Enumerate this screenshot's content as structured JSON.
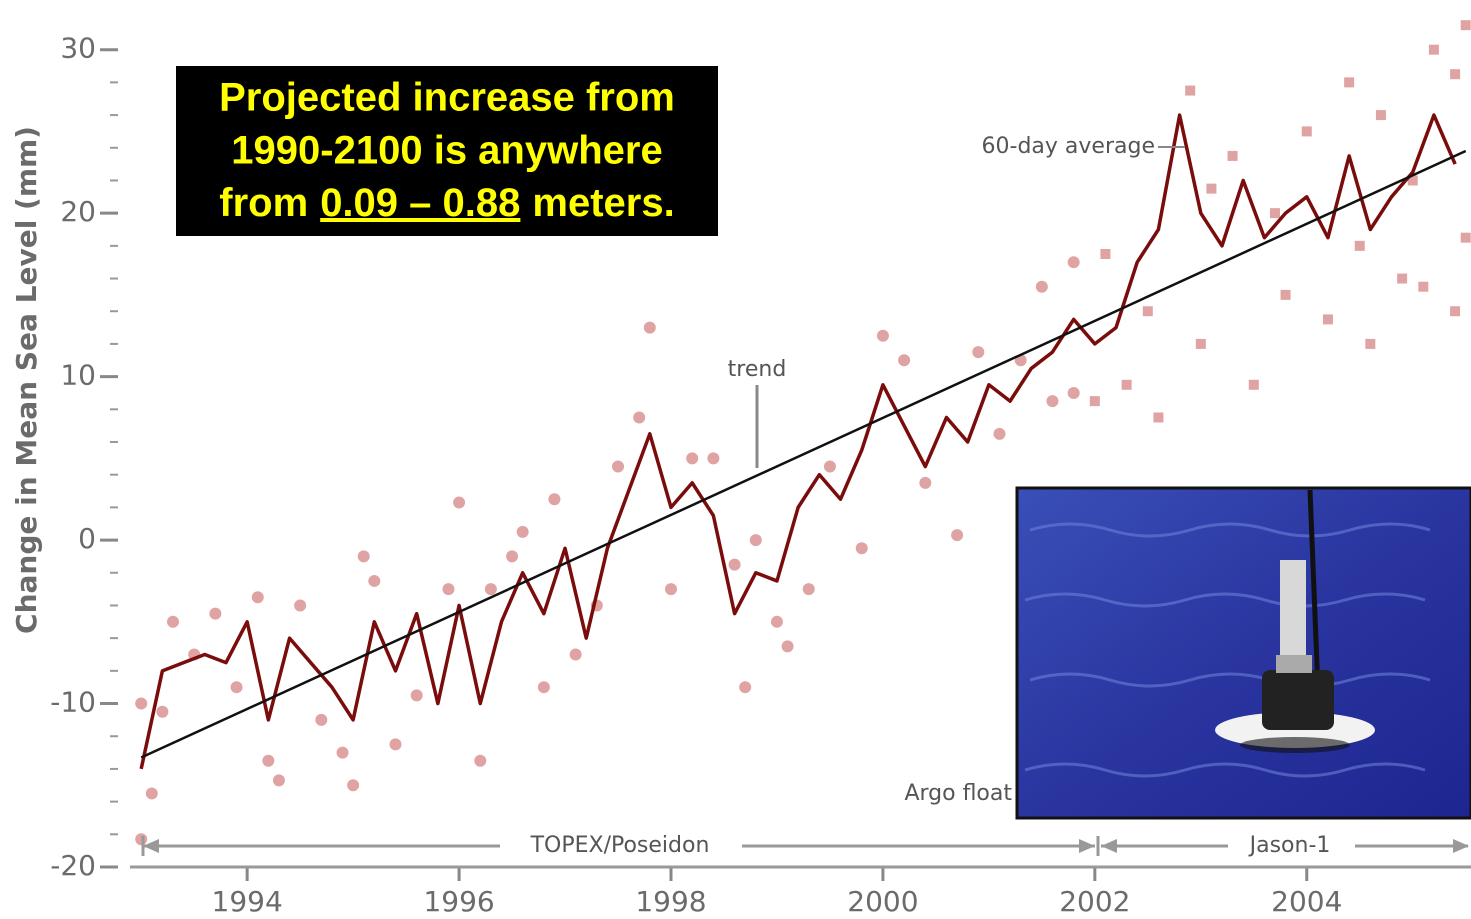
{
  "chart_data": {
    "type": "line",
    "y_label": "Change in Mean Sea Level (mm)",
    "xlim": [
      1992.8,
      2005.55
    ],
    "ylim": [
      -20,
      32
    ],
    "xticks": [
      1994,
      1996,
      1998,
      2000,
      2002,
      2004
    ],
    "yticks": [
      -20,
      -10,
      0,
      10,
      20,
      30
    ],
    "annotations": {
      "trend": "trend",
      "average": "60-day average",
      "float": "Argo float",
      "mission1": "TOPEX/Poseidon",
      "mission2": "Jason-1",
      "box": [
        "Projected increase from",
        "1990-2100 is anywhere",
        "from",
        "0.09 – 0.88",
        "meters."
      ]
    },
    "series": [
      {
        "kind": "scatter",
        "marker": "circle",
        "color": "#e0a3a3",
        "x": [
          1993.0,
          1993.0,
          1993.1,
          1993.2,
          1993.3,
          1993.5,
          1993.7,
          1993.9,
          1994.1,
          1994.2,
          1994.3,
          1994.5,
          1994.7,
          1994.9,
          1995.0,
          1995.1,
          1995.2,
          1995.4,
          1995.6,
          1995.9,
          1996.0,
          1996.2,
          1996.3,
          1996.5,
          1996.6,
          1996.8,
          1996.9,
          1997.1,
          1997.3,
          1997.5,
          1997.7,
          1997.8,
          1998.0,
          1998.2,
          1998.4,
          1998.6,
          1998.7,
          1998.8,
          1999.0,
          1999.1,
          1999.3,
          1999.5,
          1999.8,
          2000.0,
          2000.2,
          2000.4,
          2000.7,
          2000.9,
          2001.1,
          2001.3,
          2001.5,
          2001.6,
          2001.8,
          2001.8
        ],
        "values": [
          -10,
          -18.3,
          -15.5,
          -10.5,
          -5,
          -7,
          -4.5,
          -9,
          -3.5,
          -13.5,
          -14.7,
          -4,
          -11,
          -13,
          -15,
          -1,
          -2.5,
          -12.5,
          -9.5,
          -3,
          2.3,
          -13.5,
          -3,
          -1,
          0.5,
          -9,
          2.5,
          -7,
          -4,
          4.5,
          7.5,
          13,
          -3,
          5,
          5,
          -1.5,
          -9,
          0,
          -5,
          -6.5,
          -3,
          4.5,
          -0.5,
          12.5,
          11,
          3.5,
          0.3,
          11.5,
          6.5,
          11,
          15.5,
          8.5,
          9,
          17
        ]
      },
      {
        "kind": "scatter",
        "marker": "square",
        "color": "#e0a3a3",
        "x": [
          2002.0,
          2002.1,
          2002.3,
          2002.5,
          2002.6,
          2002.9,
          2003.0,
          2003.1,
          2003.3,
          2003.5,
          2003.7,
          2003.8,
          2004.0,
          2004.2,
          2004.4,
          2004.5,
          2004.6,
          2004.7,
          2004.9,
          2005.0,
          2005.1,
          2005.2,
          2005.4,
          2005.4,
          2005.5,
          2005.5
        ],
        "values": [
          8.5,
          17.5,
          9.5,
          14,
          7.5,
          27.5,
          12,
          21.5,
          23.5,
          9.5,
          20,
          15,
          25,
          13.5,
          28,
          18,
          12,
          26,
          16,
          22,
          15.5,
          30,
          28.5,
          14,
          31.5,
          18.5
        ]
      },
      {
        "kind": "line",
        "color": "#7a0c0c",
        "width": 3.5,
        "x": [
          1993.0,
          1993.2,
          1993.4,
          1993.6,
          1993.8,
          1994.0,
          1994.2,
          1994.4,
          1994.6,
          1994.8,
          1995.0,
          1995.2,
          1995.4,
          1995.6,
          1995.8,
          1996.0,
          1996.2,
          1996.4,
          1996.6,
          1996.8,
          1997.0,
          1997.2,
          1997.4,
          1997.6,
          1997.8,
          1998.0,
          1998.2,
          1998.4,
          1998.6,
          1998.8,
          1999.0,
          1999.2,
          1999.4,
          1999.6,
          1999.8,
          2000.0,
          2000.2,
          2000.4,
          2000.6,
          2000.8,
          2001.0,
          2001.2,
          2001.4,
          2001.6,
          2001.8,
          2002.0,
          2002.2,
          2002.4,
          2002.6,
          2002.8,
          2003.0,
          2003.2,
          2003.4,
          2003.6,
          2003.8,
          2004.0,
          2004.2,
          2004.4,
          2004.6,
          2004.8,
          2005.0,
          2005.2,
          2005.4
        ],
        "values": [
          -14,
          -8,
          -7.5,
          -7,
          -7.5,
          -5,
          -11,
          -6,
          -7.5,
          -9,
          -11,
          -5,
          -8,
          -4.5,
          -10,
          -4,
          -10,
          -5,
          -2,
          -4.5,
          -0.5,
          -6,
          -0.5,
          3,
          6.5,
          2,
          3.5,
          1.5,
          -4.5,
          -2,
          -2.5,
          2,
          4,
          2.5,
          5.5,
          9.5,
          7,
          4.5,
          7.5,
          6,
          9.5,
          8.5,
          10.5,
          11.5,
          13.5,
          12,
          13,
          17,
          19,
          26,
          20,
          18,
          22,
          18.5,
          20,
          21,
          18.5,
          23.5,
          19,
          21,
          22.5,
          26,
          23
        ]
      },
      {
        "kind": "line",
        "color": "#111111",
        "width": 2.5,
        "x": [
          1993.0,
          2005.5
        ],
        "values": [
          -13.3,
          23.8
        ]
      }
    ]
  }
}
